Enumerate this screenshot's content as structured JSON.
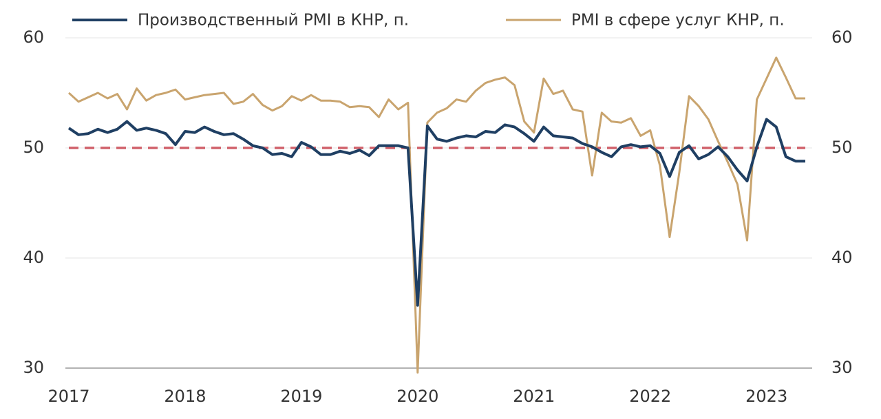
{
  "chart_data": {
    "type": "line",
    "categories": [
      "2017",
      null,
      null,
      null,
      null,
      null,
      null,
      null,
      null,
      null,
      null,
      null,
      "2018",
      null,
      null,
      null,
      null,
      null,
      null,
      null,
      null,
      null,
      null,
      null,
      "2019",
      null,
      null,
      null,
      null,
      null,
      null,
      null,
      null,
      null,
      null,
      null,
      "2020",
      null,
      null,
      null,
      null,
      null,
      null,
      null,
      null,
      null,
      null,
      null,
      "2021",
      null,
      null,
      null,
      null,
      null,
      null,
      null,
      null,
      null,
      null,
      null,
      "2022",
      null,
      null,
      null,
      null,
      null,
      null,
      null,
      null,
      null,
      null,
      null,
      "2023",
      null,
      null,
      null,
      null
    ],
    "series": [
      {
        "name": "Производственный PMI в КНР, п.",
        "color": "#1f3f63",
        "values": [
          51.8,
          51.2,
          51.3,
          51.7,
          51.4,
          51.7,
          52.4,
          51.6,
          51.8,
          51.6,
          51.3,
          50.3,
          51.5,
          51.4,
          51.9,
          51.5,
          51.2,
          51.3,
          50.8,
          50.2,
          50.0,
          49.4,
          49.5,
          49.2,
          50.5,
          50.1,
          49.4,
          49.4,
          49.7,
          49.5,
          49.8,
          49.3,
          50.2,
          50.2,
          50.2,
          50.0,
          35.7,
          52.0,
          50.8,
          50.6,
          50.9,
          51.1,
          51.0,
          51.5,
          51.4,
          52.1,
          51.9,
          51.3,
          50.6,
          51.9,
          51.1,
          51.0,
          50.9,
          50.4,
          50.1,
          49.6,
          49.2,
          50.1,
          50.3,
          50.1,
          50.2,
          49.5,
          47.4,
          49.6,
          50.2,
          49.0,
          49.4,
          50.1,
          49.2,
          48.0,
          47.0,
          50.1,
          52.6,
          51.9,
          49.2,
          48.8,
          48.8
        ]
      },
      {
        "name": "PMI в сфере услуг КНР, п.",
        "color": "#c9a46e",
        "axis": "y2",
        "values": [
          55.0,
          54.2,
          54.6,
          55.0,
          54.5,
          54.9,
          53.5,
          55.4,
          54.3,
          54.8,
          55.0,
          55.3,
          54.4,
          54.6,
          54.8,
          54.9,
          55.0,
          54.0,
          54.2,
          54.9,
          53.9,
          53.4,
          53.8,
          54.7,
          54.3,
          54.8,
          54.3,
          54.3,
          54.2,
          53.7,
          53.8,
          53.7,
          52.8,
          54.4,
          53.5,
          54.1,
          29.6,
          52.3,
          53.2,
          53.6,
          54.4,
          54.2,
          55.2,
          55.9,
          56.2,
          56.4,
          55.7,
          52.4,
          51.4,
          56.3,
          54.9,
          55.2,
          53.5,
          53.3,
          47.5,
          53.2,
          52.4,
          52.3,
          52.7,
          51.1,
          51.6,
          48.4,
          41.9,
          47.8,
          54.7,
          53.8,
          52.6,
          50.6,
          48.7,
          46.7,
          41.6,
          54.4,
          56.3,
          58.2,
          56.4,
          54.5,
          54.5
        ]
      }
    ],
    "ylim": [
      30,
      60
    ],
    "yticks": [
      30,
      40,
      50,
      60
    ],
    "y2lim": [
      30,
      60
    ],
    "y2ticks": [
      30,
      40,
      50,
      60
    ],
    "reference_line": 50,
    "reference_color": "#d0606a",
    "grid": true,
    "legend": "top"
  }
}
